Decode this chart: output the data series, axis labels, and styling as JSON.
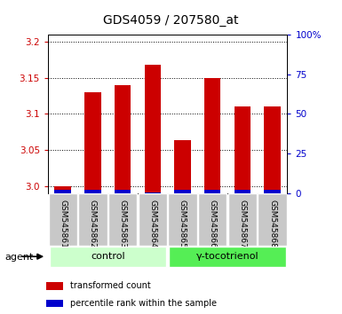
{
  "title": "GDS4059 / 207580_at",
  "samples": [
    "GSM545861",
    "GSM545862",
    "GSM545863",
    "GSM545864",
    "GSM545865",
    "GSM545866",
    "GSM545867",
    "GSM545868"
  ],
  "red_values": [
    3.0,
    3.13,
    3.14,
    3.168,
    3.063,
    3.15,
    3.11,
    3.11
  ],
  "blue_values": [
    2,
    2,
    2,
    0.5,
    2,
    2,
    2,
    2
  ],
  "ylim_left": [
    2.99,
    3.21
  ],
  "ylim_right": [
    0,
    100
  ],
  "yticks_left": [
    3.0,
    3.05,
    3.1,
    3.15,
    3.2
  ],
  "yticks_right": [
    0,
    25,
    50,
    75,
    100
  ],
  "ytick_labels_right": [
    "0",
    "25",
    "50",
    "75",
    "100%"
  ],
  "groups": [
    {
      "label": "control",
      "indices": [
        0,
        1,
        2,
        3
      ],
      "color": "#ccffcc"
    },
    {
      "label": "γ-tocotrienol",
      "indices": [
        4,
        5,
        6,
        7
      ],
      "color": "#55ee55"
    }
  ],
  "red_color": "#cc0000",
  "blue_color": "#0000cc",
  "plot_bg": "#ffffff",
  "axis_color_left": "#cc0000",
  "axis_color_right": "#0000cc",
  "legend_items": [
    {
      "color": "#cc0000",
      "label": "transformed count"
    },
    {
      "color": "#0000cc",
      "label": "percentile rank within the sample"
    }
  ],
  "agent_label": "agent",
  "title_fontsize": 10,
  "tick_fontsize": 7.5,
  "sample_fontsize": 6.5,
  "group_fontsize": 8,
  "legend_fontsize": 7
}
